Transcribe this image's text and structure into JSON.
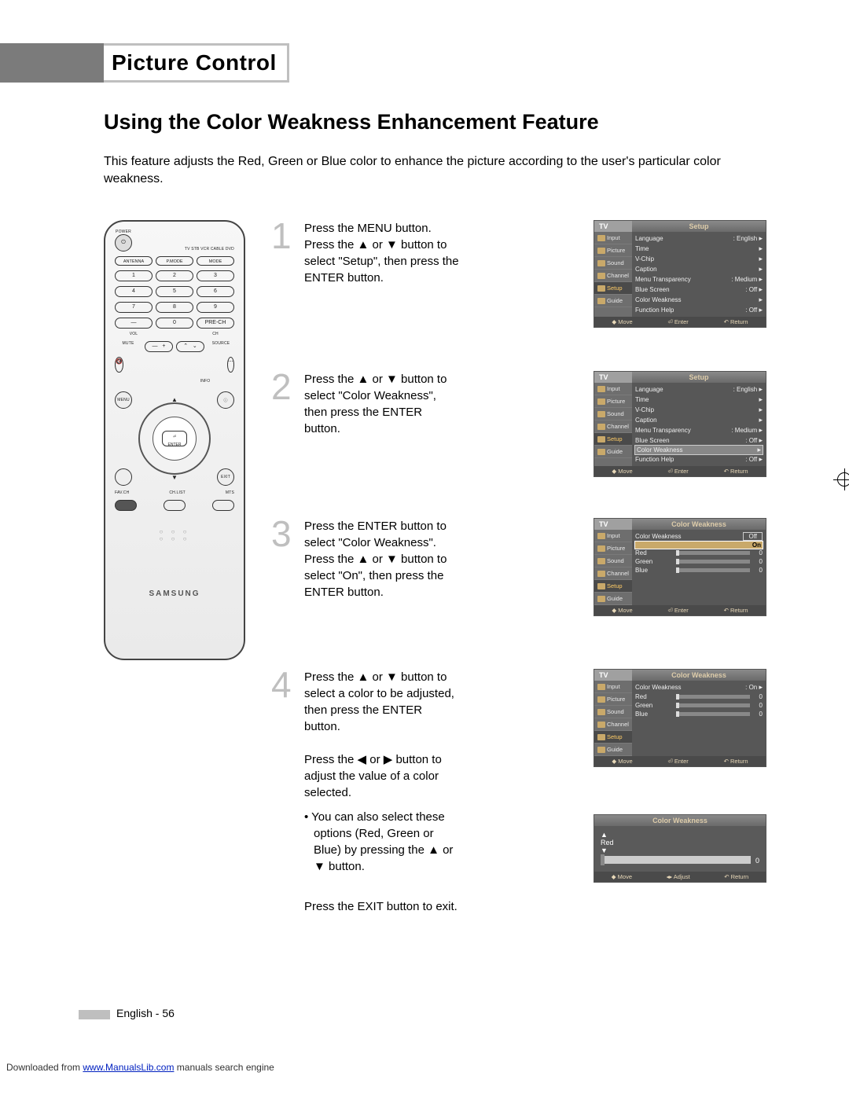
{
  "header": {
    "tab_title": "Picture Control"
  },
  "subtitle": "Using the Color Weakness Enhancement Feature",
  "intro": "This feature adjusts the Red, Green or Blue color to enhance the picture according to the user's particular color weakness.",
  "remote": {
    "power_label": "POWER",
    "source_row": "TV  STB  VCR  CABLE  DVD",
    "row_a": [
      "ANTENNA",
      "P.MODE",
      "MODE"
    ],
    "numpad": [
      [
        "1",
        "2",
        "3"
      ],
      [
        "4",
        "5",
        "6"
      ],
      [
        "7",
        "8",
        "9"
      ],
      [
        "—",
        "0",
        "PRE-CH"
      ]
    ],
    "vol": "VOL",
    "ch": "CH",
    "mute": "MUTE",
    "source": "SOURCE",
    "info": "INFO",
    "menu": "MENU",
    "exit": "EXIT",
    "enter": "ENTER",
    "fav_labels": [
      "FAV.CH",
      "CH.LIST",
      "MTS"
    ],
    "brand": "SAMSUNG"
  },
  "steps": [
    {
      "n": "1",
      "text": "Press the MENU button.\nPress the ▲ or ▼ button to select \"Setup\", then press the ENTER button.",
      "osd": "setup_plain"
    },
    {
      "n": "2",
      "text": "Press the ▲ or ▼ button to select \"Color Weakness\", then press the ENTER button.",
      "osd": "setup_cw_hl"
    },
    {
      "n": "3",
      "text": "Press the ENTER button to select \"Color Weakness\".\nPress the ▲ or ▼ button to select \"On\", then press the ENTER button.",
      "osd": "cw_onoff"
    },
    {
      "n": "4",
      "text": "Press the ▲ or ▼ button to select a color to be adjusted, then press the ENTER button.\n\nPress the ◀ or ▶ button to adjust the value of a color selected.",
      "bullet": "You can also select these options (Red, Green or Blue) by pressing the ▲ or ▼ button.",
      "osd": "cw_red_hl",
      "osd2": "adjust_red"
    }
  ],
  "exit_line": "Press the EXIT button to exit.",
  "osd_common": {
    "tv": "TV",
    "side": [
      "Input",
      "Picture",
      "Sound",
      "Channel",
      "Setup",
      "Guide"
    ],
    "foot_move": "Move",
    "foot_enter": "Enter",
    "foot_return": "Return",
    "foot_adjust": "Adjust"
  },
  "osd_setup": {
    "title": "Setup",
    "rows": [
      {
        "l": "Language",
        "v": ": English"
      },
      {
        "l": "Time",
        "v": ""
      },
      {
        "l": "V-Chip",
        "v": ""
      },
      {
        "l": "Caption",
        "v": ""
      },
      {
        "l": "Menu Transparency",
        "v": ": Medium"
      },
      {
        "l": "Blue Screen",
        "v": ": Off"
      },
      {
        "l": "Color Weakness",
        "v": ""
      },
      {
        "l": "Function Help",
        "v": ": Off"
      }
    ],
    "hl_index_for_screen2": 6
  },
  "osd_cw": {
    "title": "Color Weakness",
    "cw_label": "Color Weakness",
    "off": "Off",
    "on": "On",
    "colors": [
      "Red",
      "Green",
      "Blue"
    ],
    "values": [
      0,
      0,
      0
    ]
  },
  "osd_adjust": {
    "title": "Color Weakness",
    "color": "Red",
    "value": 0
  },
  "colors": {
    "tab_gray": "#7b7b7b",
    "tab_border": "#bfbfbf",
    "num_gray": "#bfbfbf",
    "osd_bg": "#5a5a5a",
    "osd_side": "#6e6e6e",
    "osd_title_text": "#dca060",
    "osd_hl": "#c9a96a",
    "osd_foot_text": "#e8d8b8"
  },
  "footer": {
    "lang_page": "English - 56",
    "download": "Downloaded from ",
    "site": "www.ManualsLib.com",
    "suffix": " manuals search engine"
  }
}
